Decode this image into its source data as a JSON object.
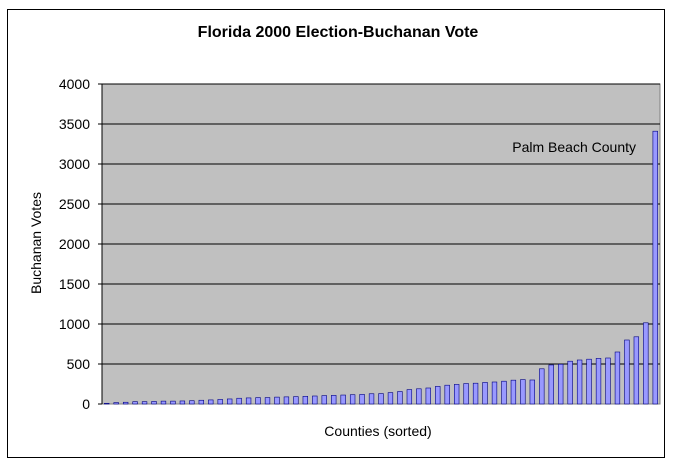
{
  "chart_data": {
    "type": "bar",
    "title": "Florida 2000 Election-Buchanan Vote",
    "xlabel": "Counties (sorted)",
    "ylabel": "Buchanan Votes",
    "ylim": [
      0,
      4000
    ],
    "yticks": [
      0,
      500,
      1000,
      1500,
      2000,
      2500,
      3000,
      3500,
      4000
    ],
    "grid": true,
    "plot_background": "#C0C0C0",
    "bar_color": "#9999FF",
    "bar_edge_color": "#000080",
    "annotation": "Palm Beach County",
    "values": [
      9,
      18,
      22,
      29,
      29,
      32,
      36,
      36,
      38,
      41,
      47,
      51,
      57,
      63,
      72,
      76,
      80,
      80,
      86,
      89,
      92,
      96,
      100,
      105,
      108,
      112,
      116,
      120,
      128,
      130,
      142,
      156,
      180,
      190,
      200,
      220,
      235,
      245,
      256,
      260,
      270,
      275,
      285,
      298,
      305,
      300,
      440,
      488,
      497,
      535,
      550,
      560,
      570,
      575,
      650,
      800,
      840,
      1015,
      3410
    ]
  }
}
